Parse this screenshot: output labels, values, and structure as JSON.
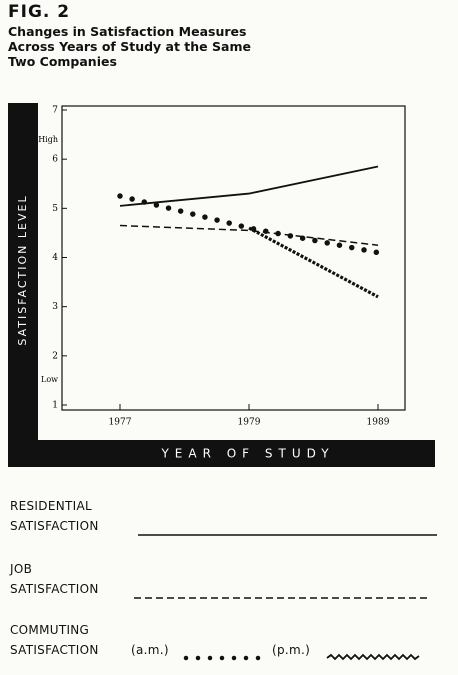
{
  "chart_data": {
    "type": "line",
    "figure_label": "FIG. 2",
    "title": "Changes in Satisfaction Measures\nAcross Years of Study at the Same\nTwo Companies",
    "y_label": "SATISFACTION LEVEL",
    "x_label": "YEAR OF STUDY",
    "y_high_label": "High",
    "y_low_label": "Low",
    "categories": [
      "1977",
      "1979",
      "1989"
    ],
    "ylim": [
      1,
      7
    ],
    "yticks": [
      1,
      2,
      3,
      4,
      5,
      6,
      7
    ],
    "legend_heading": "COMMUTING\nSATISFACTION",
    "series": [
      {
        "name": "RESIDENTIAL\nSATISFACTION",
        "color": "#111111",
        "style": "solid",
        "values": [
          5.05,
          5.3,
          5.85
        ]
      },
      {
        "name": "JOB\nSATISFACTION",
        "color": "#111111",
        "style": "dashed",
        "values": [
          4.65,
          4.55,
          4.25
        ]
      },
      {
        "name": "(a.m.)",
        "color": "#111111",
        "style": "dotted",
        "values": [
          5.25,
          4.6,
          4.1
        ]
      },
      {
        "name": "(p.m.)",
        "color": "#111111",
        "style": "wavy",
        "values": [
          null,
          4.6,
          3.2
        ]
      }
    ]
  }
}
